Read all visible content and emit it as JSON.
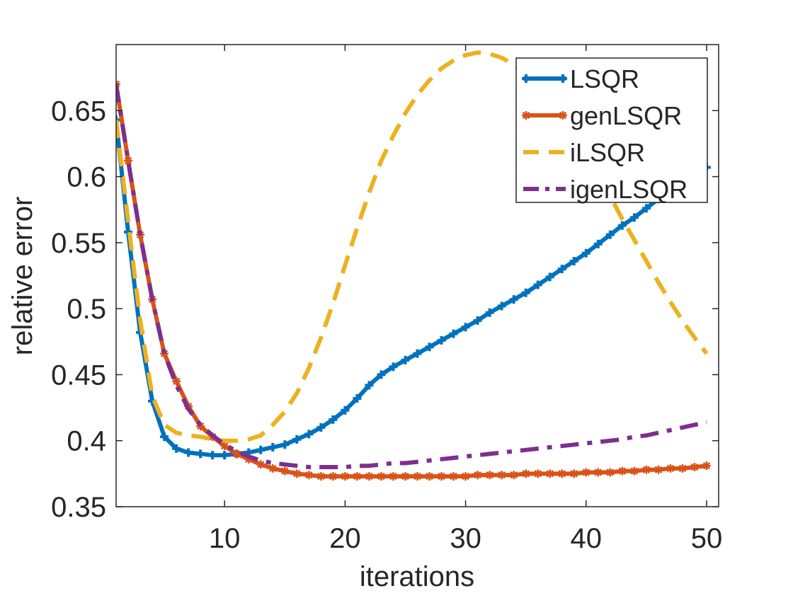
{
  "chart_data": {
    "type": "line",
    "title": "",
    "xlabel": "iterations",
    "ylabel": "relative error",
    "xlim": [
      1,
      51
    ],
    "ylim": [
      0.35,
      0.7
    ],
    "xticks": [
      10,
      20,
      30,
      40,
      50
    ],
    "xtick_labels": [
      "10",
      "20",
      "30",
      "40",
      "50"
    ],
    "yticks": [
      0.35,
      0.4,
      0.45,
      0.5,
      0.55,
      0.6,
      0.65
    ],
    "ytick_labels": [
      "0.35",
      "0.4",
      "0.45",
      "0.5",
      "0.55",
      "0.6",
      "0.65"
    ],
    "grid": false,
    "legend_position": "top-right",
    "x": [
      1,
      2,
      3,
      4,
      5,
      6,
      7,
      8,
      9,
      10,
      11,
      12,
      13,
      14,
      15,
      16,
      17,
      18,
      19,
      20,
      21,
      22,
      23,
      24,
      25,
      26,
      27,
      28,
      29,
      30,
      31,
      32,
      33,
      34,
      35,
      36,
      37,
      38,
      39,
      40,
      41,
      42,
      43,
      44,
      45,
      46,
      47,
      48,
      49,
      50
    ],
    "series": [
      {
        "name": "LSQR",
        "color": "#0072BD",
        "style": "solid",
        "marker": "plus",
        "values": [
          0.643,
          0.558,
          0.482,
          0.43,
          0.403,
          0.394,
          0.391,
          0.39,
          0.389,
          0.389,
          0.39,
          0.391,
          0.393,
          0.395,
          0.397,
          0.401,
          0.405,
          0.41,
          0.416,
          0.423,
          0.432,
          0.442,
          0.45,
          0.456,
          0.461,
          0.466,
          0.471,
          0.476,
          0.481,
          0.486,
          0.491,
          0.497,
          0.502,
          0.507,
          0.512,
          0.518,
          0.524,
          0.53,
          0.536,
          0.542,
          0.549,
          0.556,
          0.563,
          0.569,
          0.576,
          0.583,
          0.589,
          0.595,
          0.601,
          0.607
        ]
      },
      {
        "name": "genLSQR",
        "color": "#D95319",
        "style": "solid",
        "marker": "star",
        "values": [
          0.67,
          0.612,
          0.556,
          0.507,
          0.466,
          0.445,
          0.426,
          0.411,
          0.403,
          0.396,
          0.39,
          0.386,
          0.382,
          0.379,
          0.377,
          0.375,
          0.374,
          0.373,
          0.373,
          0.373,
          0.373,
          0.373,
          0.373,
          0.373,
          0.373,
          0.373,
          0.373,
          0.373,
          0.373,
          0.373,
          0.374,
          0.374,
          0.374,
          0.374,
          0.375,
          0.375,
          0.375,
          0.375,
          0.375,
          0.376,
          0.376,
          0.376,
          0.377,
          0.377,
          0.378,
          0.378,
          0.379,
          0.379,
          0.38,
          0.381
        ]
      },
      {
        "name": "iLSQR",
        "color": "#EDB120",
        "style": "dashed",
        "marker": "none",
        "values": [
          0.643,
          0.566,
          0.491,
          0.434,
          0.412,
          0.406,
          0.404,
          0.403,
          0.401,
          0.4,
          0.4,
          0.401,
          0.404,
          0.412,
          0.422,
          0.436,
          0.455,
          0.478,
          0.504,
          0.533,
          0.561,
          0.588,
          0.612,
          0.631,
          0.648,
          0.662,
          0.673,
          0.682,
          0.688,
          0.692,
          0.694,
          0.693,
          0.69,
          0.685,
          0.678,
          0.669,
          0.658,
          0.646,
          0.632,
          0.617,
          0.601,
          0.585,
          0.568,
          0.552,
          0.536,
          0.52,
          0.505,
          0.491,
          0.478,
          0.466
        ]
      },
      {
        "name": "igenLSQR",
        "color": "#7E2F8E",
        "style": "dashdot",
        "marker": "none",
        "values": [
          0.67,
          0.612,
          0.556,
          0.507,
          0.466,
          0.442,
          0.424,
          0.412,
          0.404,
          0.397,
          0.392,
          0.388,
          0.385,
          0.383,
          0.382,
          0.381,
          0.38,
          0.38,
          0.38,
          0.38,
          0.381,
          0.381,
          0.382,
          0.383,
          0.383,
          0.384,
          0.385,
          0.386,
          0.387,
          0.388,
          0.389,
          0.39,
          0.391,
          0.392,
          0.393,
          0.394,
          0.395,
          0.396,
          0.397,
          0.398,
          0.399,
          0.4,
          0.401,
          0.403,
          0.404,
          0.406,
          0.408,
          0.41,
          0.412,
          0.414
        ]
      }
    ]
  }
}
